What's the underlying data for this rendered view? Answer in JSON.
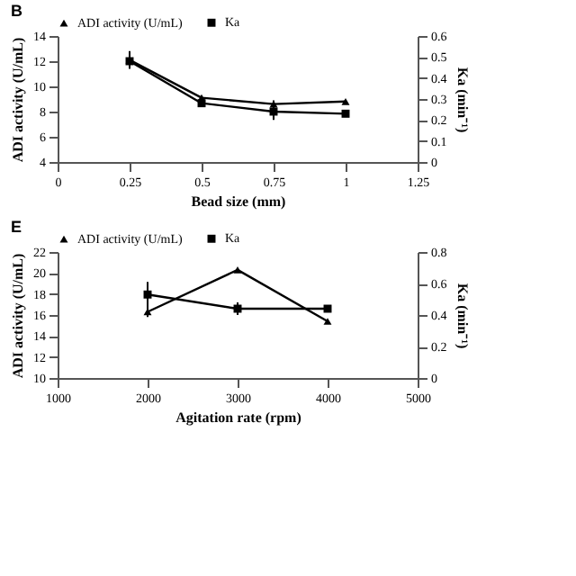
{
  "chart_data": [
    {
      "type": "line",
      "title": "B",
      "xlabel": "Bead size (mm)",
      "ylabel": "ADI activity (U/mL)",
      "y2label": "Ka (min⁻¹)",
      "x": [
        0.25,
        0.5,
        0.75,
        1
      ],
      "series": [
        {
          "name": "ADI activity (U/mL)",
          "color": "#000000",
          "marker": "triangle",
          "values": [
            12.1,
            9.1,
            8.6,
            8.8
          ],
          "errors": [
            0.7,
            null,
            0.3,
            null
          ]
        },
        {
          "name": "Ka",
          "color": "#000000",
          "marker": "square",
          "axis": "y2",
          "values": [
            0.48,
            0.28,
            0.24,
            0.23
          ],
          "errors": [
            0.03,
            null,
            0.04,
            null
          ]
        }
      ],
      "xlim": [
        0,
        1.25
      ],
      "xticks": [
        0,
        0.25,
        0.5,
        0.75,
        1,
        1.25
      ],
      "ylim": [
        4,
        14
      ],
      "yticks": [
        4,
        6,
        8,
        10,
        12,
        14
      ],
      "y2lim": [
        0,
        0.6
      ],
      "y2ticks": [
        0,
        0.1,
        0.2,
        0.3,
        0.4,
        0.5,
        0.6
      ],
      "legend": "top",
      "line_style": "solid"
    },
    {
      "type": "line",
      "title": "E",
      "xlabel": "Agitation rate (rpm)",
      "ylabel": "ADI activity (U/mL)",
      "y2label": "Ka (min⁻¹)",
      "x": [
        2000,
        3000,
        4000
      ],
      "series": [
        {
          "name": "ADI activity (U/mL)",
          "color": "#000000",
          "marker": "triangle",
          "values": [
            16.3,
            20.3,
            15.4
          ],
          "errors": [
            0.5,
            null,
            null
          ]
        },
        {
          "name": "Ka",
          "color": "#000000",
          "marker": "square",
          "axis": "y2",
          "values": [
            0.53,
            0.44,
            0.44
          ],
          "errors": [
            0.08,
            0.04,
            null
          ]
        }
      ],
      "xlim": [
        1000,
        5000
      ],
      "xticks": [
        1000,
        2000,
        3000,
        4000,
        5000
      ],
      "ylim": [
        10,
        22
      ],
      "yticks": [
        10,
        12,
        14,
        16,
        18,
        20,
        22
      ],
      "y2lim": [
        0,
        0.8
      ],
      "y2ticks": [
        0,
        0.2,
        0.4,
        0.6,
        0.8
      ],
      "legend": "top",
      "line_style": "solid"
    }
  ]
}
